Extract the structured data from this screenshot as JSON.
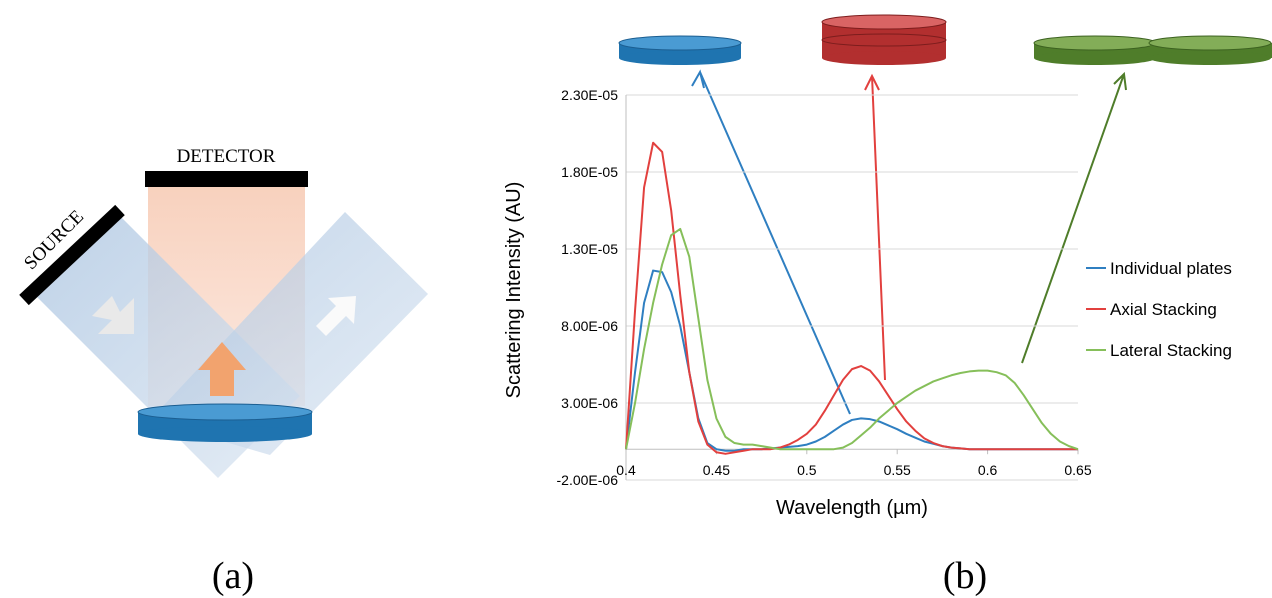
{
  "panel_a": {
    "detector_label": "DETECTOR",
    "source_label": "SOURCE",
    "caption": "(a)"
  },
  "chart_data": {
    "type": "line",
    "caption": "(b)",
    "x_label": "Wavelength (µm)",
    "y_label": "Scattering Intensity (AU)",
    "x": [
      0.4,
      0.405,
      0.41,
      0.415,
      0.42,
      0.425,
      0.43,
      0.435,
      0.44,
      0.445,
      0.45,
      0.455,
      0.46,
      0.465,
      0.47,
      0.475,
      0.48,
      0.485,
      0.49,
      0.495,
      0.5,
      0.505,
      0.51,
      0.515,
      0.52,
      0.525,
      0.53,
      0.535,
      0.54,
      0.545,
      0.55,
      0.555,
      0.56,
      0.565,
      0.57,
      0.575,
      0.58,
      0.585,
      0.59,
      0.595,
      0.6,
      0.605,
      0.61,
      0.615,
      0.62,
      0.625,
      0.63,
      0.635,
      0.64,
      0.645,
      0.65
    ],
    "series": [
      {
        "name": "Individual plates",
        "color": "#2f7fc1",
        "values": [
          0,
          5e-06,
          9.5e-06,
          1.16e-05,
          1.15e-05,
          1.02e-05,
          8e-06,
          5e-06,
          2e-06,
          4e-07,
          0,
          -1e-07,
          -1e-07,
          0,
          0,
          0,
          5e-08,
          1e-07,
          1.5e-07,
          2e-07,
          3e-07,
          5e-07,
          8e-07,
          1.2e-06,
          1.6e-06,
          1.9e-06,
          2e-06,
          1.95e-06,
          1.8e-06,
          1.55e-06,
          1.3e-06,
          1e-06,
          7.5e-07,
          5e-07,
          3.5e-07,
          2e-07,
          1e-07,
          5e-08,
          0,
          0,
          0,
          0,
          0,
          0,
          0,
          0,
          0,
          0,
          0,
          0,
          0
        ]
      },
      {
        "name": "Axial Stacking",
        "color": "#e2403e",
        "values": [
          0,
          9e-06,
          1.7e-05,
          1.99e-05,
          1.93e-05,
          1.55e-05,
          1e-05,
          5e-06,
          1.8e-06,
          3e-07,
          -2e-07,
          -3e-07,
          -2e-07,
          -1e-07,
          0,
          0,
          0,
          1e-07,
          3e-07,
          6e-07,
          1e-06,
          1.6e-06,
          2.5e-06,
          3.5e-06,
          4.5e-06,
          5.2e-06,
          5.4e-06,
          5.1e-06,
          4.4e-06,
          3.5e-06,
          2.6e-06,
          1.8e-06,
          1.2e-06,
          7e-07,
          4e-07,
          2e-07,
          1e-07,
          5e-08,
          0,
          0,
          0,
          0,
          0,
          0,
          0,
          0,
          0,
          0,
          0,
          0,
          0
        ]
      },
      {
        "name": "Lateral Stacking",
        "color": "#86bf5a",
        "values": [
          0,
          3e-06,
          6.5e-06,
          9.5e-06,
          1.2e-05,
          1.39e-05,
          1.43e-05,
          1.25e-05,
          8.5e-06,
          4.5e-06,
          2e-06,
          8e-07,
          4e-07,
          3e-07,
          3e-07,
          2e-07,
          1e-07,
          0,
          0,
          0,
          0,
          0,
          0,
          0,
          1e-07,
          4e-07,
          9e-07,
          1.4e-06,
          2e-06,
          2.5e-06,
          3e-06,
          3.4e-06,
          3.8e-06,
          4.1e-06,
          4.4e-06,
          4.6e-06,
          4.8e-06,
          4.95e-06,
          5.05e-06,
          5.1e-06,
          5.1e-06,
          5e-06,
          4.8e-06,
          4.3e-06,
          3.5e-06,
          2.6e-06,
          1.7e-06,
          1e-06,
          5e-07,
          2e-07,
          0
        ]
      }
    ],
    "xlim": [
      0.4,
      0.65
    ],
    "xticks": [
      0.4,
      0.45,
      0.5,
      0.55,
      0.6,
      0.65
    ],
    "ylim": [
      -2e-06,
      2.3e-05
    ],
    "yticks": [
      {
        "value": -2e-06,
        "label": "-2.00E-06"
      },
      {
        "value": 3e-06,
        "label": "3.00E-06"
      },
      {
        "value": 8e-06,
        "label": "8.00E-06"
      },
      {
        "value": 1.3e-05,
        "label": "1.30E-05"
      },
      {
        "value": 1.8e-05,
        "label": "1.80E-05"
      },
      {
        "value": 2.3e-05,
        "label": "2.30E-05"
      }
    ],
    "grid": true,
    "legend": "right"
  }
}
